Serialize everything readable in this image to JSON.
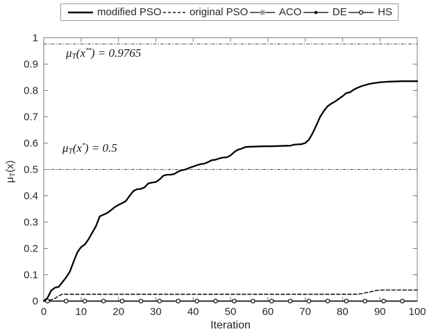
{
  "colors": {
    "curve": "#000000",
    "axis": "#7a7a7a",
    "text": "#262626",
    "refline": "#4a4a4a",
    "legend_border": "#999999",
    "marker_star": "#3d3d3d"
  },
  "chart_data": {
    "type": "line",
    "xlabel": "Iteration",
    "ylabel_text": "μ_T(x)",
    "ylabel_parts": [
      {
        "t": "μ"
      },
      {
        "t": "T",
        "pos": "sub"
      },
      {
        "t": "(x)"
      }
    ],
    "xlim": [
      0,
      100
    ],
    "ylim": [
      0,
      1
    ],
    "xticks": [
      0,
      10,
      20,
      30,
      40,
      50,
      60,
      70,
      80,
      90,
      100
    ],
    "xtick_labels": [
      "0",
      "10",
      "20",
      "30",
      "40",
      "50",
      "60",
      "70",
      "80",
      "90",
      "100"
    ],
    "yticks": [
      0,
      0.1,
      0.2,
      0.3,
      0.4,
      0.5,
      0.6,
      0.7,
      0.8,
      0.9,
      1
    ],
    "ytick_labels": [
      "0",
      "0.1",
      "0.2",
      "0.3",
      "0.4",
      "0.5",
      "0.6",
      "0.7",
      "0.8",
      "0.9",
      "1"
    ],
    "grid": false,
    "legend_position": "top-outside",
    "reflines": [
      {
        "value": 0.9765,
        "style": "dash-dot"
      },
      {
        "value": 0.5,
        "style": "dash-dot"
      }
    ],
    "annotations": [
      {
        "text": "μ_T(x**) = 0.9765",
        "x": 5.95,
        "y": 0.968,
        "parts": [
          {
            "t": "μ"
          },
          {
            "t": "T",
            "pos": "sub"
          },
          {
            "t": "("
          },
          {
            "t": "x"
          },
          {
            "t": "**",
            "pos": "sup"
          },
          {
            "t": ") = 0.9765"
          }
        ]
      },
      {
        "text": "μ_T(x*) = 0.5",
        "x": 5.0,
        "y": 0.606,
        "parts": [
          {
            "t": "μ"
          },
          {
            "t": "T",
            "pos": "sub"
          },
          {
            "t": "("
          },
          {
            "t": "x"
          },
          {
            "t": "*",
            "pos": "sup"
          },
          {
            "t": ") = 0.5"
          }
        ]
      }
    ],
    "series": [
      {
        "name": "modified PSO",
        "line": "solid",
        "marker": "none",
        "lw": 2.3,
        "points": [
          [
            0,
            0
          ],
          [
            1,
            0.012
          ],
          [
            2,
            0.04
          ],
          [
            3,
            0.051
          ],
          [
            4,
            0.054
          ],
          [
            5,
            0.072
          ],
          [
            6,
            0.09
          ],
          [
            7,
            0.112
          ],
          [
            8,
            0.15
          ],
          [
            9,
            0.185
          ],
          [
            10,
            0.205
          ],
          [
            11,
            0.215
          ],
          [
            12,
            0.235
          ],
          [
            13,
            0.26
          ],
          [
            14,
            0.285
          ],
          [
            15,
            0.322
          ],
          [
            16,
            0.328
          ],
          [
            17,
            0.335
          ],
          [
            18,
            0.345
          ],
          [
            19,
            0.357
          ],
          [
            20,
            0.365
          ],
          [
            21,
            0.372
          ],
          [
            22,
            0.38
          ],
          [
            23,
            0.4
          ],
          [
            24,
            0.418
          ],
          [
            25,
            0.425
          ],
          [
            26,
            0.426
          ],
          [
            27,
            0.432
          ],
          [
            28,
            0.447
          ],
          [
            29,
            0.45
          ],
          [
            30,
            0.452
          ],
          [
            31,
            0.462
          ],
          [
            32,
            0.476
          ],
          [
            33,
            0.48
          ],
          [
            34,
            0.48
          ],
          [
            35,
            0.483
          ],
          [
            36,
            0.492
          ],
          [
            37,
            0.497
          ],
          [
            38,
            0.5
          ],
          [
            39,
            0.506
          ],
          [
            40,
            0.511
          ],
          [
            41,
            0.516
          ],
          [
            42,
            0.52
          ],
          [
            43,
            0.522
          ],
          [
            44,
            0.528
          ],
          [
            45,
            0.535
          ],
          [
            46,
            0.537
          ],
          [
            47,
            0.542
          ],
          [
            48,
            0.545
          ],
          [
            49,
            0.546
          ],
          [
            50,
            0.553
          ],
          [
            51,
            0.566
          ],
          [
            52,
            0.575
          ],
          [
            53,
            0.579
          ],
          [
            54,
            0.585
          ],
          [
            55,
            0.586
          ],
          [
            57,
            0.587
          ],
          [
            59,
            0.588
          ],
          [
            61,
            0.588
          ],
          [
            63,
            0.589
          ],
          [
            65,
            0.59
          ],
          [
            66,
            0.59
          ],
          [
            67,
            0.594
          ],
          [
            68,
            0.595
          ],
          [
            69,
            0.596
          ],
          [
            70,
            0.6
          ],
          [
            71,
            0.613
          ],
          [
            72,
            0.638
          ],
          [
            73,
            0.668
          ],
          [
            74,
            0.7
          ],
          [
            75,
            0.722
          ],
          [
            76,
            0.74
          ],
          [
            77,
            0.75
          ],
          [
            78,
            0.758
          ],
          [
            79,
            0.768
          ],
          [
            80,
            0.778
          ],
          [
            81,
            0.79
          ],
          [
            82,
            0.793
          ],
          [
            83,
            0.803
          ],
          [
            84,
            0.81
          ],
          [
            85,
            0.816
          ],
          [
            86,
            0.82
          ],
          [
            87,
            0.824
          ],
          [
            88,
            0.827
          ],
          [
            89,
            0.829
          ],
          [
            90,
            0.831
          ],
          [
            92,
            0.833
          ],
          [
            94,
            0.834
          ],
          [
            96,
            0.835
          ],
          [
            98,
            0.835
          ],
          [
            100,
            0.835
          ]
        ]
      },
      {
        "name": "original PSO",
        "line": "dashed",
        "marker": "none",
        "lw": 1.4,
        "points": [
          [
            0,
            0
          ],
          [
            1,
            0.002
          ],
          [
            2,
            0.005
          ],
          [
            3,
            0.01
          ],
          [
            4,
            0.02
          ],
          [
            5,
            0.026
          ],
          [
            10,
            0.026
          ],
          [
            20,
            0.026
          ],
          [
            30,
            0.026
          ],
          [
            40,
            0.026
          ],
          [
            50,
            0.026
          ],
          [
            60,
            0.026
          ],
          [
            70,
            0.026
          ],
          [
            80,
            0.026
          ],
          [
            84,
            0.026
          ],
          [
            85,
            0.028
          ],
          [
            86,
            0.031
          ],
          [
            87,
            0.034
          ],
          [
            88,
            0.037
          ],
          [
            89,
            0.04
          ],
          [
            90,
            0.042
          ],
          [
            92,
            0.042
          ],
          [
            95,
            0.042
          ],
          [
            100,
            0.042
          ]
        ]
      },
      {
        "name": "ACO",
        "line": "solid",
        "marker": "asterisk",
        "lw": 1.2,
        "constant": 0,
        "marker_x": [
          1,
          6,
          11,
          16,
          21,
          26,
          31,
          36,
          41,
          46,
          51,
          56,
          61,
          66,
          71,
          76,
          81,
          86,
          91,
          96
        ]
      },
      {
        "name": "DE",
        "line": "solid",
        "marker": "dot",
        "lw": 1.2,
        "constant": 0,
        "marker_x": [
          1,
          6,
          11,
          16,
          21,
          26,
          31,
          36,
          41,
          46,
          51,
          56,
          61,
          66,
          71,
          76,
          81,
          86,
          91,
          96
        ]
      },
      {
        "name": "HS",
        "line": "solid",
        "marker": "open-circle",
        "lw": 1.2,
        "constant": 0,
        "marker_x": [
          1,
          6,
          11,
          16,
          21,
          26,
          31,
          36,
          41,
          46,
          51,
          56,
          61,
          66,
          71,
          76,
          81,
          86,
          91,
          96
        ]
      }
    ]
  }
}
